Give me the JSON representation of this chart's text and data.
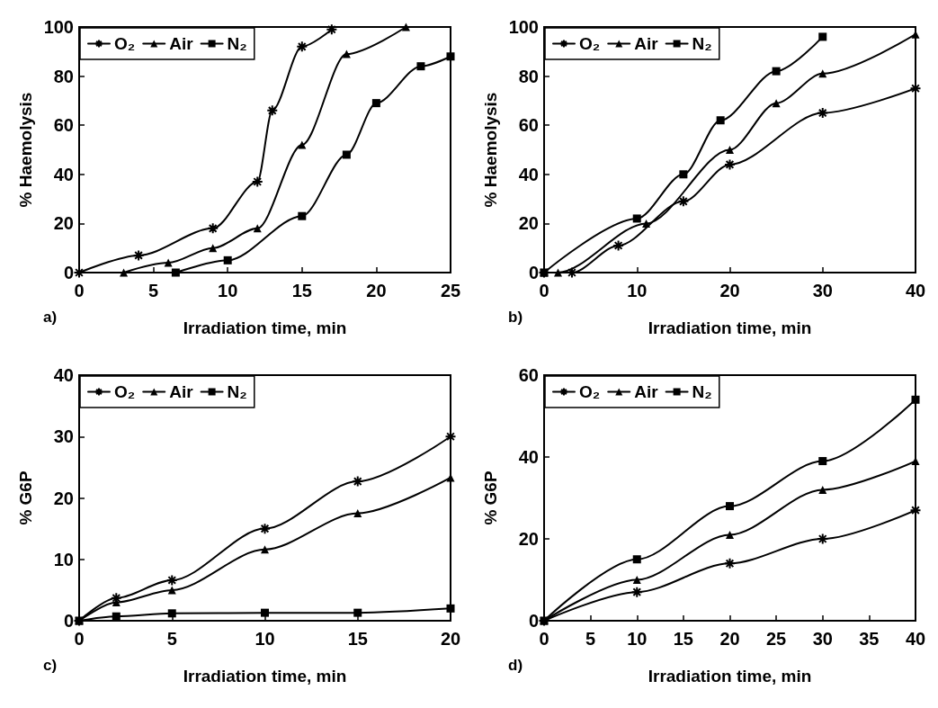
{
  "chart_data": [
    {
      "type": "line",
      "xlabel": "Irradiation time, min",
      "ylabel": "% Haemolysis",
      "annotations": [
        "a)"
      ],
      "xlim": [
        0,
        25
      ],
      "xticks": [
        0,
        5,
        10,
        15,
        20,
        25
      ],
      "ylim": [
        0,
        100
      ],
      "yticks": [
        0,
        20,
        40,
        60,
        80,
        100
      ],
      "grid": false,
      "legend": "top left",
      "line_style": "solid",
      "series": [
        {
          "name": "O₂",
          "color": "#000000",
          "marker": "cross",
          "x": [
            0,
            4,
            9,
            12,
            13,
            15,
            17
          ],
          "values": [
            0,
            7,
            18,
            37,
            66,
            92,
            99
          ]
        },
        {
          "name": "Air",
          "color": "#000000",
          "marker": "triangle",
          "x": [
            3,
            6,
            9,
            12,
            15,
            18,
            22
          ],
          "values": [
            0,
            4,
            10,
            18,
            52,
            89,
            100
          ]
        },
        {
          "name": "N₂",
          "color": "#000000",
          "marker": "square",
          "x": [
            6.5,
            10,
            15,
            18,
            20,
            23,
            25
          ],
          "values": [
            0,
            5,
            23,
            48,
            69,
            84,
            88
          ]
        }
      ]
    },
    {
      "type": "line",
      "xlabel": "Irradiation time, min",
      "ylabel": "% Haemolysis",
      "annotations": [
        "b)"
      ],
      "xlim": [
        0,
        40
      ],
      "xticks": [
        0,
        10,
        20,
        30,
        40
      ],
      "ylim": [
        0,
        100
      ],
      "yticks": [
        0,
        20,
        40,
        60,
        80,
        100
      ],
      "grid": false,
      "legend": "top left",
      "line_style": "solid",
      "series": [
        {
          "name": "O₂",
          "color": "#000000",
          "marker": "cross",
          "x": [
            0,
            3,
            8,
            15,
            20,
            30,
            40
          ],
          "values": [
            0,
            0,
            11,
            29,
            44,
            65,
            75
          ]
        },
        {
          "name": "Air",
          "color": "#000000",
          "marker": "triangle",
          "x": [
            0,
            1.5,
            11,
            20,
            25,
            30,
            40
          ],
          "values": [
            0,
            0,
            20,
            50,
            69,
            81,
            97
          ]
        },
        {
          "name": "N₂",
          "color": "#000000",
          "marker": "square",
          "x": [
            0,
            10,
            15,
            19,
            25,
            30
          ],
          "values": [
            0,
            22,
            40,
            62,
            82,
            96
          ]
        }
      ]
    },
    {
      "type": "line",
      "xlabel": "Irradiation time, min",
      "ylabel": "% G6P",
      "annotations": [
        "c)"
      ],
      "xlim": [
        0,
        20
      ],
      "xticks": [
        0,
        5,
        10,
        15,
        20
      ],
      "ylim": [
        0,
        40
      ],
      "yticks": [
        0,
        10,
        20,
        30,
        40
      ],
      "grid": false,
      "legend": "top left",
      "line_style": "solid",
      "series": [
        {
          "name": "O₂",
          "color": "#000000",
          "marker": "cross",
          "x": [
            0,
            2,
            5,
            10,
            15,
            20
          ],
          "values": [
            0,
            3.7,
            6.6,
            15,
            22.7,
            30
          ]
        },
        {
          "name": "Air",
          "color": "#000000",
          "marker": "triangle",
          "x": [
            0,
            2,
            5,
            10,
            15,
            20
          ],
          "values": [
            0,
            3,
            5,
            11.6,
            17.5,
            23.3
          ]
        },
        {
          "name": "N₂",
          "color": "#000000",
          "marker": "square",
          "x": [
            0,
            2,
            5,
            10,
            15,
            20
          ],
          "values": [
            0,
            0.7,
            1.2,
            1.3,
            1.3,
            2
          ]
        }
      ]
    },
    {
      "type": "line",
      "xlabel": "Irradiation time, min",
      "ylabel": "% G6P",
      "annotations": [
        "d)"
      ],
      "xlim": [
        0,
        40
      ],
      "xticks": [
        0,
        5,
        10,
        15,
        20,
        25,
        30,
        35,
        40
      ],
      "ylim": [
        0,
        60
      ],
      "yticks": [
        0,
        20,
        40,
        60
      ],
      "grid": false,
      "legend": "top left",
      "line_style": "solid",
      "series": [
        {
          "name": "O₂",
          "color": "#000000",
          "marker": "cross",
          "x": [
            0,
            10,
            20,
            30,
            40
          ],
          "values": [
            0,
            7,
            14,
            20,
            27
          ]
        },
        {
          "name": "Air",
          "color": "#000000",
          "marker": "triangle",
          "x": [
            0,
            10,
            20,
            30,
            40
          ],
          "values": [
            0,
            10,
            21,
            32,
            39
          ]
        },
        {
          "name": "N₂",
          "color": "#000000",
          "marker": "square",
          "x": [
            0,
            10,
            20,
            30,
            40
          ],
          "values": [
            0,
            15,
            28,
            39,
            54
          ]
        }
      ]
    }
  ]
}
